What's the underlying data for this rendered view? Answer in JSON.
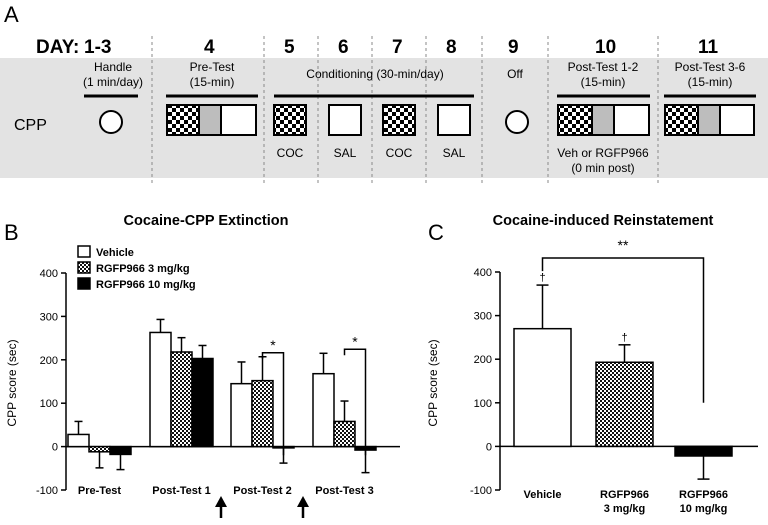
{
  "panel_a": {
    "letter": "A",
    "day_prefix": "DAY:",
    "days": [
      {
        "day": "1-3",
        "phase": "Handle",
        "sub": "(1 min/day)",
        "below": ""
      },
      {
        "day": "4",
        "phase": "Pre-Test",
        "sub": "(15-min)",
        "below": ""
      },
      {
        "day": "5",
        "phase": "",
        "sub": "",
        "below": "COC"
      },
      {
        "day": "6",
        "phase": "",
        "sub": "",
        "below": "SAL"
      },
      {
        "day": "7",
        "phase": "",
        "sub": "",
        "below": "COC"
      },
      {
        "day": "8",
        "phase": "",
        "sub": "",
        "below": "SAL"
      },
      {
        "day": "9",
        "phase": "Off",
        "sub": "",
        "below": ""
      },
      {
        "day": "10",
        "phase": "Post-Test 1-2",
        "sub": "(15-min)",
        "below": "Veh or RGFP966",
        "below2": "(0 min post)"
      },
      {
        "day": "11",
        "phase": "Post-Test 3-6",
        "sub": "(15-min)",
        "below": ""
      }
    ],
    "conditioning_label": "Conditioning (30-min/day)",
    "row_label": "CPP",
    "colors": {
      "band": "#e3e3e3",
      "gray_box": "#bdbdbd"
    }
  },
  "chart_data": [
    {
      "panel": "B",
      "type": "bar",
      "title": "Cocaine-CPP Extinction",
      "ylabel": "CPP score (sec)",
      "ylim": [
        -100,
        400
      ],
      "yticks": [
        "-100",
        "0",
        "100",
        "200",
        "300",
        "400"
      ],
      "categories": [
        "Pre-Test",
        "Post-Test 1",
        "Post-Test 2",
        "Post-Test 3"
      ],
      "series": [
        {
          "name": "Vehicle",
          "fill": "white",
          "values": [
            28,
            263,
            145,
            168
          ],
          "errors": [
            30,
            30,
            50,
            47
          ]
        },
        {
          "name": "RGFP966 3 mg/kg",
          "fill": "checker",
          "values": [
            -12,
            218,
            152,
            58
          ],
          "errors": [
            37,
            33,
            55,
            47
          ]
        },
        {
          "name": "RGFP966 10 mg/kg",
          "fill": "black",
          "values": [
            -18,
            203,
            -3,
            -8
          ],
          "errors": [
            35,
            30,
            35,
            52
          ]
        }
      ],
      "significance": [
        {
          "category": "Post-Test 2",
          "label": "*"
        },
        {
          "category": "Post-Test 3",
          "label": "*"
        }
      ],
      "legend_position": "top-left",
      "arrows_under": [
        "Post-Test 1",
        "Post-Test 2"
      ]
    },
    {
      "panel": "C",
      "type": "bar",
      "title": "Cocaine-induced Reinstatement",
      "ylabel": "CPP score (sec)",
      "ylim": [
        -100,
        400
      ],
      "yticks": [
        "-100",
        "0",
        "100",
        "200",
        "300",
        "400"
      ],
      "categories": [
        "Vehicle",
        "RGFP966 3 mg/kg",
        "RGFP966 10 mg/kg"
      ],
      "category_lines": [
        [
          "Vehicle"
        ],
        [
          "RGFP966",
          "3 mg/kg"
        ],
        [
          "RGFP966",
          "10 mg/kg"
        ]
      ],
      "values": [
        270,
        193,
        -22
      ],
      "errors": [
        100,
        40,
        53
      ],
      "fills": [
        "white",
        "checker",
        "black"
      ],
      "markers": [
        "†",
        "†",
        ""
      ],
      "significance": [
        {
          "between": [
            "Vehicle",
            "RGFP966 10 mg/kg"
          ],
          "label": "**"
        }
      ]
    }
  ]
}
